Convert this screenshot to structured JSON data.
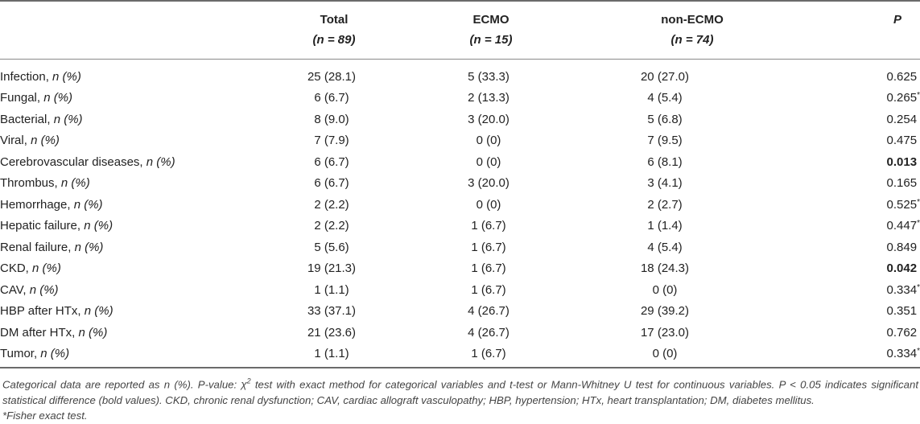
{
  "header": {
    "col_total": "Total",
    "col_total_n": "(n = 89)",
    "col_ecmo": "ECMO",
    "col_ecmo_n": "(n = 15)",
    "col_non": "non-ECMO",
    "col_non_n": "(n = 74)",
    "col_p": "P"
  },
  "rows": [
    {
      "label": "Infection,",
      "unit": "n (%)",
      "total": "25 (28.1)",
      "ecmo": "5 (33.3)",
      "non": "20 (27.0)",
      "p": "0.625",
      "p_bold": false,
      "fisher": false
    },
    {
      "label": "Fungal,",
      "unit": "n (%)",
      "total": "6 (6.7)",
      "ecmo": "2 (13.3)",
      "non": "4 (5.4)",
      "p": "0.265",
      "p_bold": false,
      "fisher": true
    },
    {
      "label": "Bacterial,",
      "unit": "n (%)",
      "total": "8 (9.0)",
      "ecmo": "3 (20.0)",
      "non": "5 (6.8)",
      "p": "0.254",
      "p_bold": false,
      "fisher": false
    },
    {
      "label": "Viral,",
      "unit": "n (%)",
      "total": "7 (7.9)",
      "ecmo": "0 (0)",
      "non": "7 (9.5)",
      "p": "0.475",
      "p_bold": false,
      "fisher": false
    },
    {
      "label": "Cerebrovascular diseases,",
      "unit": "n (%)",
      "total": "6 (6.7)",
      "ecmo": "0 (0)",
      "non": "6 (8.1)",
      "p": "0.013",
      "p_bold": true,
      "fisher": false
    },
    {
      "label": "Thrombus,",
      "unit": "n (%)",
      "total": "6 (6.7)",
      "ecmo": "3 (20.0)",
      "non": "3 (4.1)",
      "p": "0.165",
      "p_bold": false,
      "fisher": false
    },
    {
      "label": "Hemorrhage,",
      "unit": "n (%)",
      "total": "2 (2.2)",
      "ecmo": "0 (0)",
      "non": "2 (2.7)",
      "p": "0.525",
      "p_bold": false,
      "fisher": true
    },
    {
      "label": "Hepatic failure,",
      "unit": "n (%)",
      "total": "2 (2.2)",
      "ecmo": "1 (6.7)",
      "non": "1 (1.4)",
      "p": "0.447",
      "p_bold": false,
      "fisher": true
    },
    {
      "label": "Renal failure,",
      "unit": "n (%)",
      "total": "5 (5.6)",
      "ecmo": "1 (6.7)",
      "non": "4 (5.4)",
      "p": "0.849",
      "p_bold": false,
      "fisher": false
    },
    {
      "label": "CKD,",
      "unit": "n (%)",
      "total": "19 (21.3)",
      "ecmo": "1 (6.7)",
      "non": "18 (24.3)",
      "p": "0.042",
      "p_bold": true,
      "fisher": false
    },
    {
      "label": "CAV,",
      "unit": "n (%)",
      "total": "1 (1.1)",
      "ecmo": "1 (6.7)",
      "non": "0 (0)",
      "p": "0.334",
      "p_bold": false,
      "fisher": true
    },
    {
      "label": "HBP after HTx,",
      "unit": "n (%)",
      "total": "33 (37.1)",
      "ecmo": "4 (26.7)",
      "non": "29 (39.2)",
      "p": "0.351",
      "p_bold": false,
      "fisher": false
    },
    {
      "label": "DM after HTx,",
      "unit": "n (%)",
      "total": "21 (23.6)",
      "ecmo": "4 (26.7)",
      "non": "17 (23.0)",
      "p": "0.762",
      "p_bold": false,
      "fisher": false
    },
    {
      "label": "Tumor,",
      "unit": "n (%)",
      "total": "1 (1.1)",
      "ecmo": "1 (6.7)",
      "non": "0 (0)",
      "p": "0.334",
      "p_bold": false,
      "fisher": true
    }
  ],
  "footnote": {
    "part1": "Categorical data are reported as n (%). P-value: ",
    "chi": "χ",
    "chi_sup": "2",
    "part2": " test with exact method for categorical variables and t-test or Mann-Whitney U test for continuous variables. P < 0.05 indicates significant statistical difference (bold values). CKD, chronic renal dysfunction; CAV, cardiac allograft vasculopathy; HBP, hypertension; HTx, heart transplantation; DM, diabetes mellitus.",
    "fisher": "*Fisher exact test."
  }
}
